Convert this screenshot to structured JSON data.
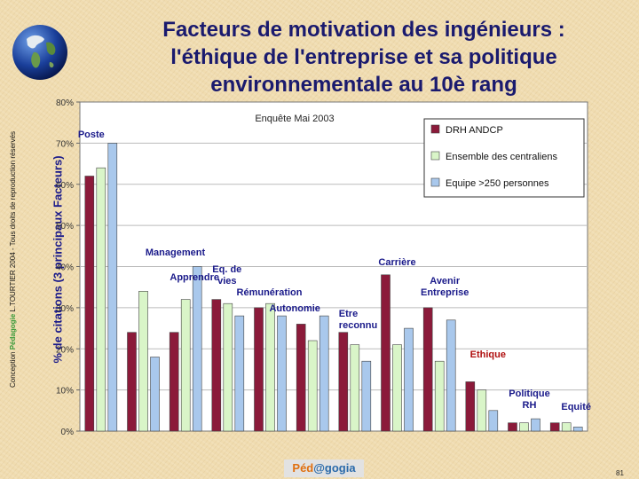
{
  "slide": {
    "title": "Facteurs de motivation des ingénieurs :\nl'éthique de l'entreprise et sa politique\nenvironnementale au 10è rang",
    "side_credit": {
      "prefix": "Conception",
      "highlight": "Pédagogie",
      "text": "L.TOURTIER 2004 - Tous droits de reproduction réservés"
    },
    "footer_brand": {
      "part1": "Péd",
      "part2": "@gogia"
    },
    "page_number": "81",
    "colors": {
      "title": "#1a1a6e",
      "background": "#f0dcb0"
    }
  },
  "chart_data": {
    "type": "bar",
    "subtitle": "Enquête Mai 2003",
    "ylabel": "% de citations (3 principaux Facteurs)",
    "ylim": [
      0,
      80
    ],
    "yticks": [
      0,
      10,
      20,
      30,
      40,
      50,
      60,
      70,
      80
    ],
    "ytick_labels": [
      "0%",
      "10%",
      "20%",
      "30%",
      "40%",
      "50%",
      "60%",
      "70%",
      "80%"
    ],
    "grid": true,
    "legend_position": "top-right",
    "categories": [
      "Poste",
      "Management",
      "Apprendre",
      "Eq. de vies",
      "Rémunération",
      "Autonomie",
      "Etre reconnu",
      "Carrière",
      "Avenir Entreprise",
      "Ethique",
      "Politique RH",
      "Equité"
    ],
    "series": [
      {
        "name": "DRH ANDCP",
        "color": "#8b1a3a",
        "values": [
          62,
          24,
          24,
          32,
          30,
          26,
          24,
          38,
          30,
          12,
          2,
          2
        ]
      },
      {
        "name": "Ensemble des centraliens",
        "color": "#d9f5c8",
        "values": [
          64,
          34,
          32,
          31,
          31,
          22,
          21,
          21,
          17,
          10,
          2,
          2
        ]
      },
      {
        "name": "Equipe >250 personnes",
        "color": "#a9c8ec",
        "values": [
          70,
          18,
          40,
          28,
          28,
          28,
          17,
          25,
          27,
          5,
          3,
          1
        ]
      }
    ],
    "label_color_default": "#1a1a8a",
    "label_color_highlight": "#b01010",
    "highlight_category": "Ethique"
  }
}
